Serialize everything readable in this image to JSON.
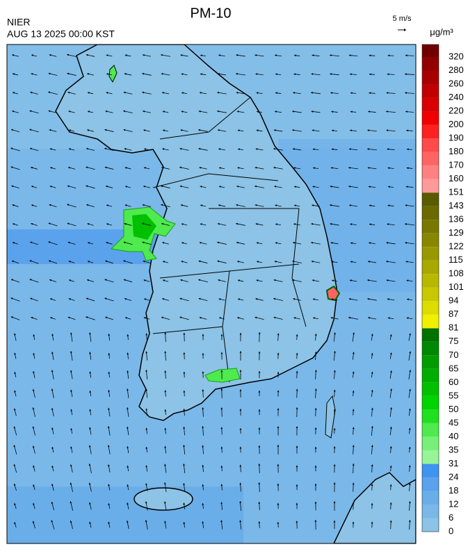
{
  "header": {
    "title": "PM-10",
    "agency": "NIER",
    "timestamp": "AUG 13 2025 00:00 KST",
    "wind_scale": "5 m/s",
    "unit": "μg/m³"
  },
  "colorbar": {
    "levels": [
      0,
      6,
      12,
      18,
      24,
      31,
      35,
      40,
      45,
      50,
      55,
      60,
      65,
      70,
      75,
      81,
      87,
      94,
      101,
      108,
      115,
      122,
      129,
      136,
      143,
      151,
      160,
      170,
      180,
      190,
      200,
      220,
      240,
      260,
      280,
      320
    ],
    "colors": [
      "#8cc3e6",
      "#7ab8ea",
      "#6aaee9",
      "#5aa3ec",
      "#3f94f0",
      "#96f596",
      "#78f078",
      "#4eea4e",
      "#1fe01f",
      "#00d400",
      "#00c000",
      "#00ae00",
      "#009c00",
      "#008800",
      "#007200",
      "#f0f000",
      "#dcdc00",
      "#c8c800",
      "#b8b800",
      "#a8a800",
      "#989800",
      "#888800",
      "#787800",
      "#6a6a00",
      "#5a5a00",
      "#ff9a9a",
      "#ff8080",
      "#ff6464",
      "#ff4a4a",
      "#ff2020",
      "#f00000",
      "#d80000",
      "#c00000",
      "#a80000",
      "#900000",
      "#700000"
    ]
  }
}
